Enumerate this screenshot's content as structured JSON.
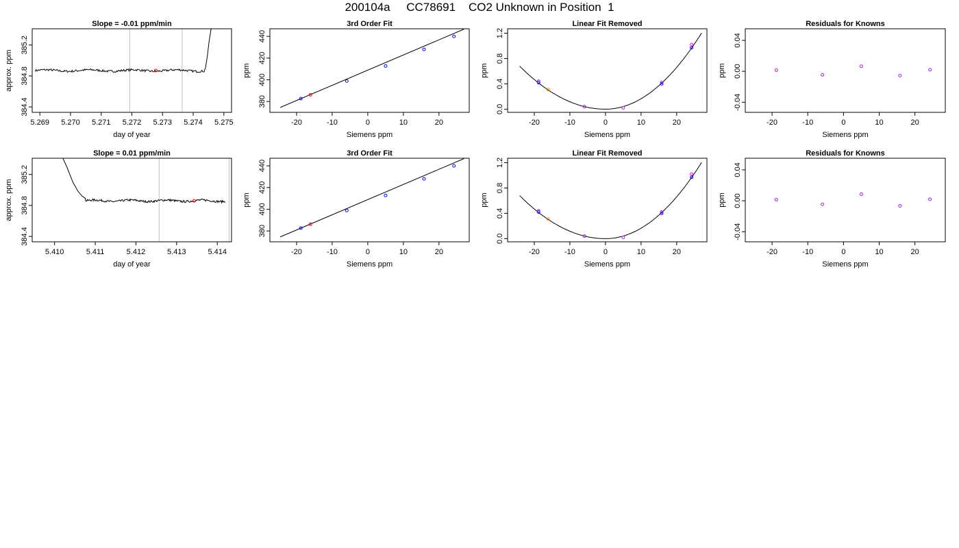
{
  "page": {
    "title": "200104a     CC78691    CO2 Unknown in Position  1"
  },
  "colors": {
    "axis": "#000000",
    "trace": "#000000",
    "vline": "#bebebe",
    "red": "#ff0000",
    "blue": "#0000ff",
    "magenta": "#ff00ff",
    "purple": "#a020f0",
    "orange": "#ff8c00"
  },
  "chart_data": [
    {
      "id": "row1-timeseries",
      "type": "line",
      "title": "Slope =  -0.01  ppm/min",
      "xlabel": "day of year",
      "ylabel": "approx. ppm",
      "xlim": [
        5.26875,
        5.27525
      ],
      "ylim": [
        384.33,
        385.41
      ],
      "x_ticks": [
        "5.269",
        "5.270",
        "5.271",
        "5.272",
        "5.273",
        "5.274",
        "5.275"
      ],
      "y_ticks": [
        "384.4",
        "384.8",
        "385.2"
      ],
      "vlines": [
        5.27193,
        5.27364
      ],
      "trace": {
        "x_start": 5.26885,
        "x_end": 5.27436,
        "baseline": 384.87,
        "tail": [
          [
            5.27436,
            384.87
          ],
          [
            5.2744,
            384.9
          ],
          [
            5.27446,
            385.05
          ],
          [
            5.27452,
            385.25
          ],
          [
            5.2746,
            385.45
          ]
        ]
      },
      "points": [
        {
          "x": 5.27278,
          "y": 384.87,
          "color": "red"
        }
      ]
    },
    {
      "id": "row1-fit",
      "type": "scatter",
      "title": "3rd Order Fit",
      "xlabel": "Siemens ppm",
      "ylabel": "ppm",
      "xlim": [
        -27.5,
        28.5
      ],
      "ylim": [
        370,
        447
      ],
      "x_ticks": [
        "-20",
        "-10",
        "0",
        "10",
        "20"
      ],
      "y_ticks": [
        "380",
        "400",
        "420",
        "440"
      ],
      "curve": {
        "x": [
          -24.6,
          27.0
        ],
        "y": [
          374.5,
          446.6
        ]
      },
      "points": [
        {
          "x": -18.8,
          "y": 382.6,
          "color": "blue"
        },
        {
          "x": -16.1,
          "y": 386.2,
          "color": "red"
        },
        {
          "x": -5.9,
          "y": 398.9,
          "color": "blue"
        },
        {
          "x": 5.0,
          "y": 412.7,
          "color": "blue"
        },
        {
          "x": 15.8,
          "y": 428.0,
          "color": "blue"
        },
        {
          "x": 24.2,
          "y": 440.0,
          "color": "blue"
        }
      ]
    },
    {
      "id": "row1-linear-removed",
      "type": "scatter",
      "title": "Linear Fit Removed",
      "xlabel": "Siemens ppm",
      "ylabel": "ppm",
      "xlim": [
        -27.5,
        28.5
      ],
      "ylim": [
        -0.05,
        1.27
      ],
      "x_ticks": [
        "-20",
        "-10",
        "0",
        "10",
        "20"
      ],
      "y_ticks": [
        "0.0",
        "0.4",
        "0.8",
        "1.2"
      ],
      "curve": {
        "x_from": -24.1,
        "x_to": 27.0,
        "coef_pos": 0.00165,
        "coef_neg": 0.00117
      },
      "points": [
        {
          "x": -18.8,
          "y": 0.42,
          "color": "blue"
        },
        {
          "x": -18.8,
          "y": 0.44,
          "color": "purple"
        },
        {
          "x": -16.1,
          "y": 0.31,
          "color": "orange"
        },
        {
          "x": -5.9,
          "y": 0.04,
          "color": "purple"
        },
        {
          "x": 5.0,
          "y": 0.02,
          "color": "purple"
        },
        {
          "x": 15.8,
          "y": 0.4,
          "color": "blue"
        },
        {
          "x": 15.8,
          "y": 0.42,
          "color": "purple"
        },
        {
          "x": 24.2,
          "y": 0.97,
          "color": "blue"
        },
        {
          "x": 24.2,
          "y": 1.02,
          "color": "magenta"
        }
      ]
    },
    {
      "id": "row1-residuals",
      "type": "scatter",
      "title": "Residuals for Knowns",
      "xlabel": "Siemens ppm",
      "ylabel": "ppm",
      "xlim": [
        -27.5,
        28.5
      ],
      "ylim": [
        -0.053,
        0.055
      ],
      "x_ticks": [
        "-20",
        "-10",
        "0",
        "10",
        "20"
      ],
      "y_ticks": [
        "-0.04",
        "0.00",
        "0.04"
      ],
      "points": [
        {
          "x": -18.8,
          "y": 0.0015,
          "color": "purple"
        },
        {
          "x": -5.9,
          "y": -0.0045,
          "color": "purple"
        },
        {
          "x": 5.0,
          "y": 0.0065,
          "color": "purple"
        },
        {
          "x": 15.8,
          "y": -0.0055,
          "color": "purple"
        },
        {
          "x": 24.2,
          "y": 0.002,
          "color": "purple"
        }
      ]
    },
    {
      "id": "row2-timeseries",
      "type": "line",
      "title": "Slope =  0.01  ppm/min",
      "xlabel": "day of year",
      "ylabel": "approx. ppm",
      "xlim": [
        5.40945,
        5.41435
      ],
      "ylim": [
        384.33,
        385.41
      ],
      "x_ticks": [
        "5.410",
        "5.411",
        "5.412",
        "5.413",
        "5.414"
      ],
      "y_ticks": [
        "384.4",
        "384.8",
        "385.2"
      ],
      "vlines": [
        5.41257,
        5.41429
      ],
      "trace": {
        "x_start": 5.41076,
        "x_end": 5.4142,
        "baseline": 384.86,
        "head": [
          [
            5.41017,
            385.45
          ],
          [
            5.4103,
            385.3
          ],
          [
            5.41045,
            385.1
          ],
          [
            5.41058,
            384.98
          ],
          [
            5.41068,
            384.92
          ],
          [
            5.41076,
            384.89
          ]
        ]
      },
      "points": [
        {
          "x": 5.41343,
          "y": 384.86,
          "color": "red"
        }
      ]
    },
    {
      "id": "row2-fit",
      "type": "scatter",
      "title": "3rd Order Fit",
      "xlabel": "Siemens ppm",
      "ylabel": "ppm",
      "xlim": [
        -27.5,
        28.5
      ],
      "ylim": [
        370,
        447
      ],
      "x_ticks": [
        "-20",
        "-10",
        "0",
        "10",
        "20"
      ],
      "y_ticks": [
        "380",
        "400",
        "420",
        "440"
      ],
      "curve": {
        "x": [
          -24.6,
          27.0
        ],
        "y": [
          374.5,
          446.6
        ]
      },
      "points": [
        {
          "x": -18.8,
          "y": 382.6,
          "color": "blue"
        },
        {
          "x": -16.1,
          "y": 386.2,
          "color": "red"
        },
        {
          "x": -5.9,
          "y": 398.9,
          "color": "blue"
        },
        {
          "x": 5.0,
          "y": 412.7,
          "color": "blue"
        },
        {
          "x": 15.8,
          "y": 428.0,
          "color": "blue"
        },
        {
          "x": 24.2,
          "y": 440.0,
          "color": "blue"
        }
      ]
    },
    {
      "id": "row2-linear-removed",
      "type": "scatter",
      "title": "Linear Fit Removed",
      "xlabel": "Siemens ppm",
      "ylabel": "ppm",
      "xlim": [
        -27.5,
        28.5
      ],
      "ylim": [
        -0.05,
        1.27
      ],
      "x_ticks": [
        "-20",
        "-10",
        "0",
        "10",
        "20"
      ],
      "y_ticks": [
        "0.0",
        "0.4",
        "0.8",
        "1.2"
      ],
      "curve": {
        "x_from": -24.1,
        "x_to": 27.0,
        "coef_pos": 0.00165,
        "coef_neg": 0.00117
      },
      "points": [
        {
          "x": -18.8,
          "y": 0.42,
          "color": "blue"
        },
        {
          "x": -18.8,
          "y": 0.44,
          "color": "purple"
        },
        {
          "x": -16.1,
          "y": 0.31,
          "color": "orange"
        },
        {
          "x": -5.9,
          "y": 0.04,
          "color": "purple"
        },
        {
          "x": 5.0,
          "y": 0.02,
          "color": "purple"
        },
        {
          "x": 15.8,
          "y": 0.4,
          "color": "blue"
        },
        {
          "x": 15.8,
          "y": 0.42,
          "color": "purple"
        },
        {
          "x": 24.2,
          "y": 0.97,
          "color": "blue"
        },
        {
          "x": 24.2,
          "y": 1.02,
          "color": "magenta"
        }
      ]
    },
    {
      "id": "row2-residuals",
      "type": "scatter",
      "title": "Residuals for Knowns",
      "xlabel": "Siemens ppm",
      "ylabel": "ppm",
      "xlim": [
        -27.5,
        28.5
      ],
      "ylim": [
        -0.053,
        0.055
      ],
      "x_ticks": [
        "-20",
        "-10",
        "0",
        "10",
        "20"
      ],
      "y_ticks": [
        "-0.04",
        "0.00",
        "0.04"
      ],
      "points": [
        {
          "x": -18.8,
          "y": 0.0015,
          "color": "purple"
        },
        {
          "x": -5.9,
          "y": -0.0045,
          "color": "purple"
        },
        {
          "x": 5.0,
          "y": 0.0085,
          "color": "purple"
        },
        {
          "x": 15.8,
          "y": -0.0065,
          "color": "purple"
        },
        {
          "x": 24.2,
          "y": 0.002,
          "color": "purple"
        }
      ]
    }
  ]
}
